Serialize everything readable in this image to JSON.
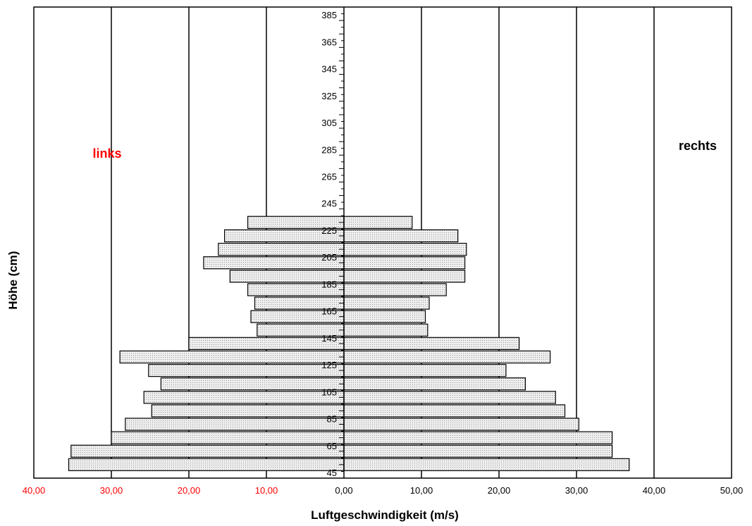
{
  "chart_data": {
    "type": "bar",
    "orientation": "horizontal",
    "xlabel": "Luftgeschwindigkeit (m/s)",
    "ylabel": "Höhe (cm)",
    "xlim": [
      -40,
      50
    ],
    "x_ticks": [
      -40,
      -30,
      -20,
      -10,
      0,
      10,
      20,
      30,
      40,
      50
    ],
    "x_tick_labels": [
      "40,00",
      "30,00",
      "20,00",
      "10,00",
      "0,00",
      "10,00",
      "20,00",
      "30,00",
      "40,00",
      "50,00"
    ],
    "ylim": [
      45,
      395
    ],
    "y_tick_labels": [
      "45",
      "65",
      "85",
      "105",
      "125",
      "145",
      "165",
      "185",
      "205",
      "225",
      "245",
      "265",
      "285",
      "305",
      "325",
      "345",
      "365",
      "385"
    ],
    "grid": "vertical",
    "annotations": [
      {
        "text": "links",
        "color": "#ff0000"
      },
      {
        "text": "rechts",
        "color": "#000000"
      }
    ],
    "heights": [
      55,
      65,
      75,
      85,
      95,
      105,
      115,
      125,
      135,
      145,
      155,
      165,
      175,
      185,
      195,
      205,
      215,
      225,
      235
    ],
    "series": [
      {
        "name": "links",
        "values": [
          35.5,
          35.2,
          30.0,
          28.2,
          24.8,
          25.8,
          23.6,
          25.2,
          28.9,
          20.0,
          11.2,
          12.0,
          11.5,
          12.4,
          14.7,
          18.1,
          16.2,
          15.4,
          12.4
        ]
      },
      {
        "name": "rechts",
        "values": [
          36.8,
          34.6,
          34.6,
          30.3,
          28.5,
          27.3,
          23.4,
          20.9,
          26.6,
          22.6,
          10.8,
          10.5,
          11.0,
          13.2,
          15.6,
          15.6,
          15.8,
          14.7,
          8.8
        ]
      }
    ],
    "colors": {
      "negative_tick_labels": "#ff0000",
      "bar_fill": "#eeeeee",
      "bar_stroke": "#000000"
    }
  }
}
